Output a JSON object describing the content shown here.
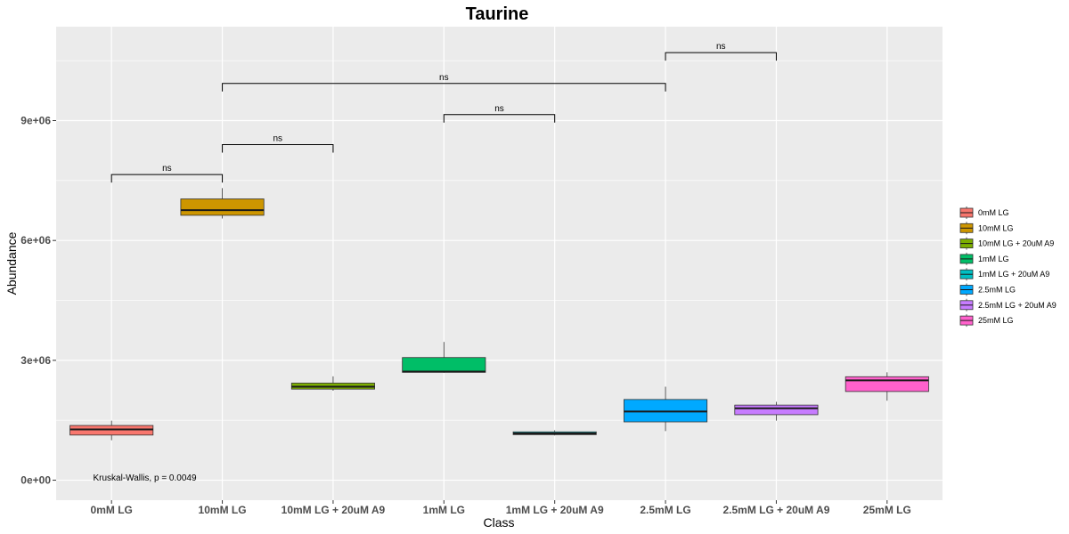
{
  "chart_data": {
    "type": "boxplot",
    "title": "Taurine",
    "xlabel": "Class",
    "ylabel": "Abundance",
    "ylim": [
      -500000,
      11350000
    ],
    "yticks": [
      0,
      3000000,
      6000000,
      9000000
    ],
    "ytick_labels": [
      "0e+00",
      "3e+06",
      "6e+06",
      "9e+06"
    ],
    "categories": [
      "0mM LG",
      "10mM LG",
      "10mM LG + 20uM A9",
      "1mM LG",
      "1mM LG + 20uM A9",
      "2.5mM LG",
      "2.5mM LG + 20uM A9",
      "25mM LG"
    ],
    "colors": [
      "#F8766D",
      "#CD9600",
      "#7CAE00",
      "#00BE67",
      "#00BFC4",
      "#00A9FF",
      "#C77CFF",
      "#FF61CC"
    ],
    "boxes": [
      {
        "min": 1000000,
        "q1": 1130000,
        "median": 1270000,
        "q3": 1370000,
        "max": 1490000
      },
      {
        "min": 6550000,
        "q1": 6630000,
        "median": 6760000,
        "q3": 7040000,
        "max": 7310000
      },
      {
        "min": 2240000,
        "q1": 2280000,
        "median": 2340000,
        "q3": 2430000,
        "max": 2600000
      },
      {
        "min": 2690000,
        "q1": 2700000,
        "median": 2720000,
        "q3": 3070000,
        "max": 3460000
      },
      {
        "min": 1120000,
        "q1": 1140000,
        "median": 1170000,
        "q3": 1210000,
        "max": 1250000
      },
      {
        "min": 1230000,
        "q1": 1460000,
        "median": 1720000,
        "q3": 2020000,
        "max": 2340000
      },
      {
        "min": 1490000,
        "q1": 1640000,
        "median": 1800000,
        "q3": 1880000,
        "max": 1960000
      },
      {
        "min": 1990000,
        "q1": 2220000,
        "median": 2500000,
        "q3": 2590000,
        "max": 2700000
      }
    ],
    "comparisons": [
      {
        "from": 0,
        "to": 1,
        "y": 7650000,
        "label": "ns"
      },
      {
        "from": 1,
        "to": 2,
        "y": 8400000,
        "label": "ns"
      },
      {
        "from": 3,
        "to": 4,
        "y": 9150000,
        "label": "ns"
      },
      {
        "from": 1,
        "to": 5,
        "y": 9930000,
        "label": "ns"
      },
      {
        "from": 5,
        "to": 6,
        "y": 10700000,
        "label": "ns"
      }
    ],
    "annotation": "Kruskal-Wallis, p = 0.0049",
    "annotation_position": [
      0.3,
      60000
    ],
    "legend": {
      "position": "right",
      "entries": [
        "0mM LG",
        "10mM LG",
        "10mM LG + 20uM A9",
        "1mM LG",
        "1mM LG + 20uM A9",
        "2.5mM LG",
        "2.5mM LG + 20uM A9",
        "25mM LG"
      ]
    },
    "grid": true,
    "panel_background": "#EBEBEB",
    "grid_color": "#FFFFFF"
  }
}
